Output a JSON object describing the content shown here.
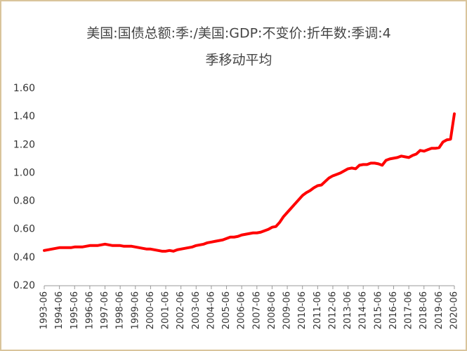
{
  "chart_data": {
    "type": "line",
    "title": [
      "美国:国债总额:季:/美国:GDP:不变价:折年数:季调:4",
      "季移动平均"
    ],
    "categories": [
      "1993-06",
      null,
      null,
      null,
      "1994-06",
      null,
      null,
      null,
      "1995-06",
      null,
      null,
      null,
      "1996-06",
      null,
      null,
      null,
      "1997-06",
      null,
      null,
      null,
      "1998-06",
      null,
      null,
      null,
      "1999-06",
      null,
      null,
      null,
      "2000-06",
      null,
      null,
      null,
      "2001-06",
      null,
      null,
      null,
      "2002-06",
      null,
      null,
      null,
      "2003-06",
      null,
      null,
      null,
      "2004-06",
      null,
      null,
      null,
      "2005-06",
      null,
      null,
      null,
      "2006-06",
      null,
      null,
      null,
      "2007-06",
      null,
      null,
      null,
      "2008-06",
      null,
      null,
      null,
      "2009-06",
      null,
      null,
      null,
      "2010-06",
      null,
      null,
      null,
      "2011-06",
      null,
      null,
      null,
      "2012-06",
      null,
      null,
      null,
      "2013-06",
      null,
      null,
      null,
      "2014-06",
      null,
      null,
      null,
      "2015-06",
      null,
      null,
      null,
      "2016-06",
      null,
      null,
      null,
      "2017-06",
      null,
      null,
      null,
      "2018-06",
      null,
      null,
      null,
      "2019-06",
      null,
      null,
      null,
      "2020-06"
    ],
    "values": [
      0.45,
      0.455,
      0.46,
      0.465,
      0.47,
      0.47,
      0.47,
      0.47,
      0.475,
      0.475,
      0.475,
      0.48,
      0.485,
      0.485,
      0.485,
      0.49,
      0.495,
      0.49,
      0.485,
      0.485,
      0.485,
      0.48,
      0.48,
      0.48,
      0.475,
      0.47,
      0.465,
      0.46,
      0.46,
      0.455,
      0.45,
      0.445,
      0.445,
      0.45,
      0.445,
      0.455,
      0.46,
      0.465,
      0.47,
      0.475,
      0.485,
      0.49,
      0.495,
      0.505,
      0.51,
      0.515,
      0.52,
      0.525,
      0.535,
      0.545,
      0.545,
      0.55,
      0.56,
      0.565,
      0.57,
      0.575,
      0.575,
      0.58,
      0.59,
      0.6,
      0.615,
      0.62,
      0.65,
      0.69,
      0.72,
      0.75,
      0.78,
      0.81,
      0.84,
      0.86,
      0.875,
      0.895,
      0.91,
      0.915,
      0.94,
      0.965,
      0.98,
      0.99,
      1.0,
      1.015,
      1.03,
      1.035,
      1.03,
      1.055,
      1.06,
      1.06,
      1.07,
      1.07,
      1.065,
      1.055,
      1.09,
      1.1,
      1.105,
      1.11,
      1.12,
      1.115,
      1.11,
      1.125,
      1.135,
      1.16,
      1.155,
      1.165,
      1.175,
      1.175,
      1.18,
      1.22,
      1.235,
      1.24,
      1.42
    ],
    "color": "#ff0000",
    "ylim": [
      0.2,
      1.6
    ],
    "yticks": [
      {
        "value": 0.2,
        "label": "0.20"
      },
      {
        "value": 0.4,
        "label": "0.40"
      },
      {
        "value": 0.6,
        "label": "0.60"
      },
      {
        "value": 0.8,
        "label": "0.80"
      },
      {
        "value": 1.0,
        "label": "1.00"
      },
      {
        "value": 1.2,
        "label": "1.20"
      },
      {
        "value": 1.4,
        "label": "1.40"
      },
      {
        "value": 1.6,
        "label": "1.60"
      }
    ],
    "grid": false
  }
}
